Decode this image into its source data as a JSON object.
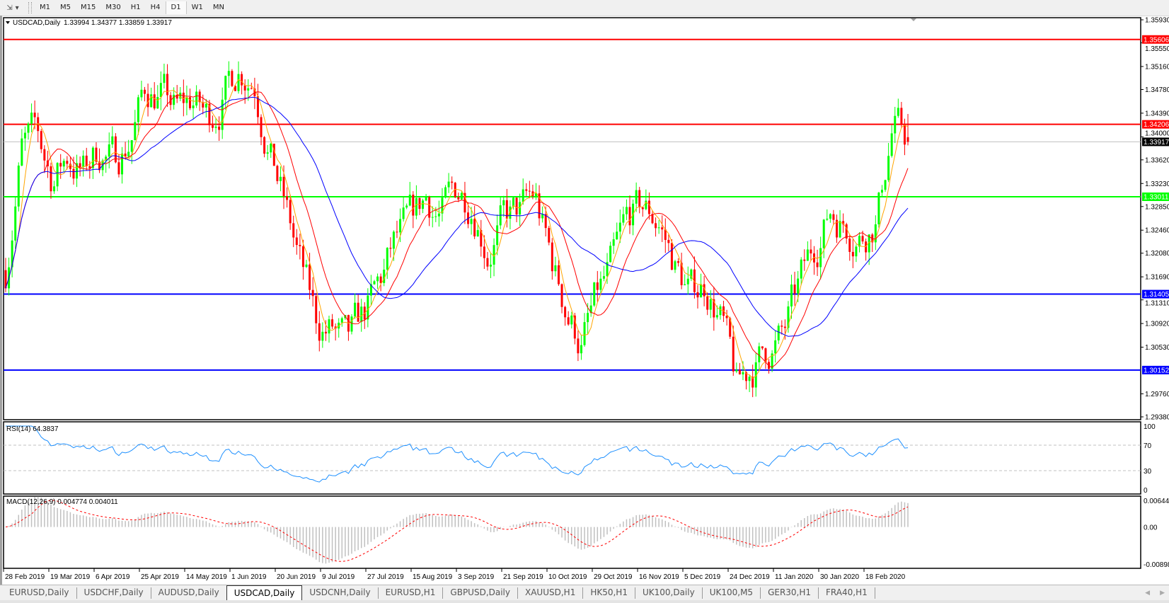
{
  "toolbar": {
    "tool_icon": "line-tools-icon",
    "timeframes": [
      "M1",
      "M5",
      "M15",
      "M30",
      "H1",
      "H4",
      "D1",
      "W1",
      "MN"
    ],
    "active_timeframe": "D1"
  },
  "chart": {
    "header": "USDCAD,Daily",
    "ohlc": "1.33994 1.34377 1.33859 1.33917",
    "rsi_label": "RSI(14) 64.3837",
    "macd_label": "MACD(12,26,9) 0.004774 0.004011"
  },
  "colors": {
    "bull": "#00ff00",
    "bear": "#ff0000",
    "ma_fast": "#ffa500",
    "ma_mid": "#ff0000",
    "ma_slow": "#0000ff",
    "rsi": "#1e90ff",
    "macd_hist": "#c0c0c0",
    "macd_signal": "#ff0000"
  },
  "chart_data": {
    "type": "candlestick",
    "symbol": "USDCAD",
    "timeframe": "Daily",
    "last_bar": {
      "open": 1.33994,
      "high": 1.34377,
      "low": 1.33859,
      "close": 1.33917
    },
    "ylim": [
      1.2938,
      1.3593
    ],
    "y_ticks": [
      "1.35930",
      "1.35550",
      "1.35160",
      "1.34780",
      "1.34390",
      "1.34000",
      "1.33620",
      "1.33230",
      "1.32850",
      "1.32460",
      "1.32080",
      "1.31690",
      "1.31310",
      "1.30920",
      "1.30530",
      "1.29760",
      "1.29380"
    ],
    "x_ticks": [
      "28 Feb 2019",
      "19 Mar 2019",
      "6 Apr 2019",
      "25 Apr 2019",
      "14 May 2019",
      "1 Jun 2019",
      "20 Jun 2019",
      "9 Jul 2019",
      "27 Jul 2019",
      "15 Aug 2019",
      "3 Sep 2019",
      "21 Sep 2019",
      "10 Oct 2019",
      "29 Oct 2019",
      "16 Nov 2019",
      "5 Dec 2019",
      "24 Dec 2019",
      "11 Jan 2020",
      "30 Jan 2020",
      "18 Feb 2020"
    ],
    "approx_weekly_closes": [
      1.318,
      1.338,
      1.34,
      1.333,
      1.337,
      1.334,
      1.338,
      1.336,
      1.34,
      1.348,
      1.347,
      1.344,
      1.346,
      1.343,
      1.347,
      1.352,
      1.35,
      1.338,
      1.328,
      1.318,
      1.309,
      1.308,
      1.305,
      1.31,
      1.315,
      1.322,
      1.325,
      1.33,
      1.327,
      1.331,
      1.33,
      1.322,
      1.326,
      1.327,
      1.33,
      1.32,
      1.312,
      1.306,
      1.313,
      1.318,
      1.326,
      1.328,
      1.326,
      1.319,
      1.314,
      1.316,
      1.31,
      1.298,
      1.302,
      1.305,
      1.307,
      1.315,
      1.322,
      1.328,
      1.326,
      1.324,
      1.327,
      1.342,
      1.339
    ],
    "moving_averages": [
      {
        "color": "#ffa500"
      },
      {
        "color": "#ff0000"
      },
      {
        "color": "#0000ff"
      }
    ],
    "horizontal_lines": [
      {
        "price": "1.35606",
        "color": "#ff0000"
      },
      {
        "price": "1.34206",
        "color": "#ff0000"
      },
      {
        "price": "1.33917",
        "color": "#000000",
        "kind": "bid"
      },
      {
        "price": "1.33011",
        "color": "#00ff00"
      },
      {
        "price": "1.31405",
        "color": "#0000ff"
      },
      {
        "price": "1.30152",
        "color": "#0000ff"
      }
    ],
    "rsi": {
      "period": 14,
      "value": 64.3837,
      "levels": [
        70,
        30
      ],
      "ticks": [
        "100",
        "70",
        "30",
        "0"
      ]
    },
    "macd": {
      "fast": 12,
      "slow": 26,
      "signal": 9,
      "main": 0.004774,
      "signal_value": 0.004011,
      "ticks": [
        "0.006448",
        "0.00",
        "-0.00898"
      ],
      "ylim": [
        -0.00898,
        0.006448
      ]
    }
  },
  "tabs": [
    {
      "label": "EURUSD,Daily"
    },
    {
      "label": "USDCHF,Daily"
    },
    {
      "label": "AUDUSD,Daily"
    },
    {
      "label": "USDCAD,Daily",
      "active": true
    },
    {
      "label": "USDCNH,Daily"
    },
    {
      "label": "EURUSD,H1"
    },
    {
      "label": "GBPUSD,Daily"
    },
    {
      "label": "XAUUSD,H1"
    },
    {
      "label": "HK50,H1"
    },
    {
      "label": "UK100,Daily"
    },
    {
      "label": "UK100,M5"
    },
    {
      "label": "GER30,H1"
    },
    {
      "label": "FRA40,H1"
    }
  ]
}
